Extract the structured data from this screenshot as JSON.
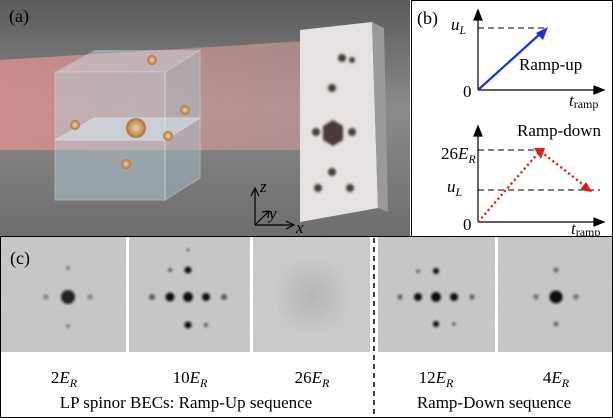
{
  "panel_a": {
    "label": "(a)",
    "axes": {
      "z": "z",
      "y": "y",
      "x": "x"
    }
  },
  "panel_b": {
    "label": "(b)",
    "ramp_up": {
      "y_label": {
        "symbol": "u",
        "sub": "L"
      },
      "title": "Ramp-up",
      "origin": "0",
      "x_label": {
        "symbol": "t",
        "sub": "ramp"
      }
    },
    "ramp_down": {
      "y_top_label": {
        "number": "26",
        "symbol": "E",
        "sub": "R"
      },
      "y_label": {
        "symbol": "u",
        "sub": "L"
      },
      "title": "Ramp-down",
      "origin": "0",
      "x_label": {
        "symbol": "t",
        "sub": "ramp"
      }
    }
  },
  "panel_c": {
    "label": "(c)",
    "images": [
      {
        "number": "2",
        "symbol": "E",
        "sub": "R"
      },
      {
        "number": "10",
        "symbol": "E",
        "sub": "R"
      },
      {
        "number": "26",
        "symbol": "E",
        "sub": "R"
      },
      {
        "number": "12",
        "symbol": "E",
        "sub": "R"
      },
      {
        "number": "4",
        "symbol": "E",
        "sub": "R"
      }
    ],
    "captions": [
      "LP spinor BECs: Ramp-Up sequence",
      "Ramp-Down sequence"
    ]
  }
}
